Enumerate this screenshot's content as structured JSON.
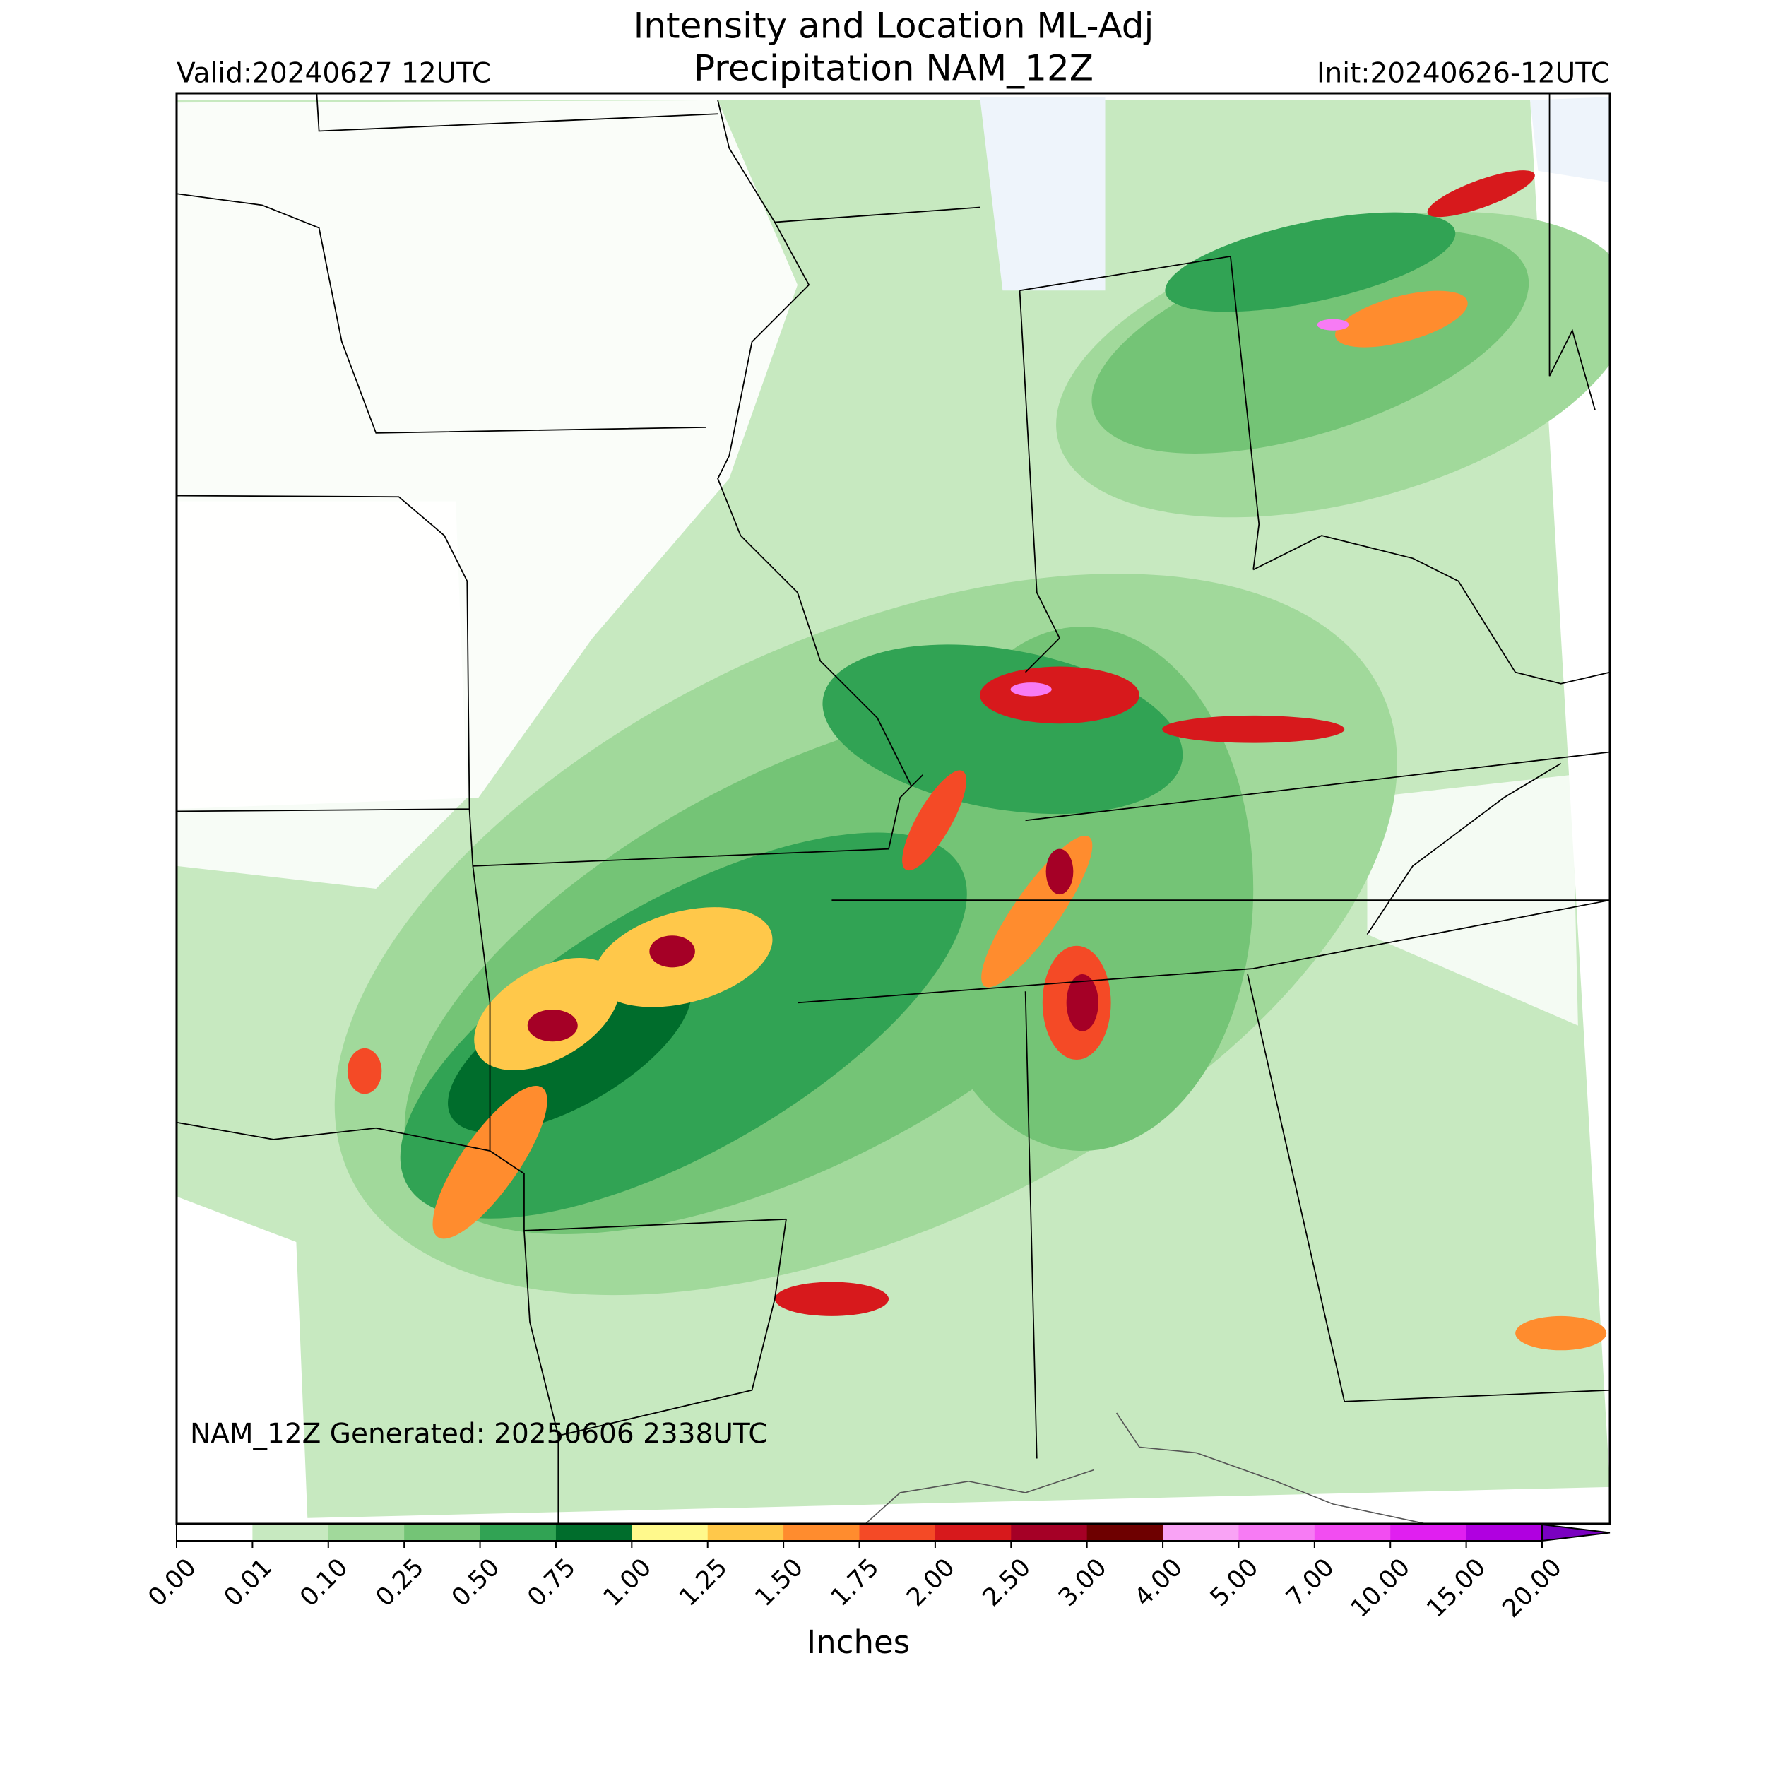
{
  "title": [
    "Intensity and Location ML-Adj",
    "Precipitation NAM_12Z"
  ],
  "valid": "Valid:20240627 12UTC",
  "init": "Init:20240626-12UTC",
  "footer": "NAM_12Z Generated: 20250606 2338UTC",
  "colorbar": {
    "label": "Inches",
    "ticks": [
      {
        "value": 0,
        "label": "0.00"
      },
      {
        "value": 0.01,
        "label": "0.01"
      },
      {
        "value": 0.1,
        "label": "0.10"
      },
      {
        "value": 0.25,
        "label": "0.25"
      },
      {
        "value": 0.5,
        "label": "0.50"
      },
      {
        "value": 0.75,
        "label": "0.75"
      },
      {
        "value": 1,
        "label": "1.00"
      },
      {
        "value": 1.25,
        "label": "1.25"
      },
      {
        "value": 1.5,
        "label": "1.50"
      },
      {
        "value": 1.75,
        "label": "1.75"
      },
      {
        "value": 2,
        "label": "2.00"
      },
      {
        "value": 2.5,
        "label": "2.50"
      },
      {
        "value": 3,
        "label": "3.00"
      },
      {
        "value": 4,
        "label": "4.00"
      },
      {
        "value": 5,
        "label": "5.00"
      },
      {
        "value": 7,
        "label": "7.00"
      },
      {
        "value": 10,
        "label": "10.00"
      },
      {
        "value": 15,
        "label": "15.00"
      },
      {
        "value": 20,
        "label": "20.00"
      }
    ],
    "colors": [
      "#ffffff",
      "#c7e9c0",
      "#a1d99b",
      "#74c476",
      "#31a354",
      "#006d2c",
      "#fff98c",
      "#ffc84a",
      "#ff8c2e",
      "#f44a26",
      "#d7191c",
      "#a50026",
      "#6e0000",
      "#f9a3f5",
      "#f77bf4",
      "#f24df1",
      "#e01ff0",
      "#b000e0"
    ],
    "extend_color": "#7a00c0"
  }
}
